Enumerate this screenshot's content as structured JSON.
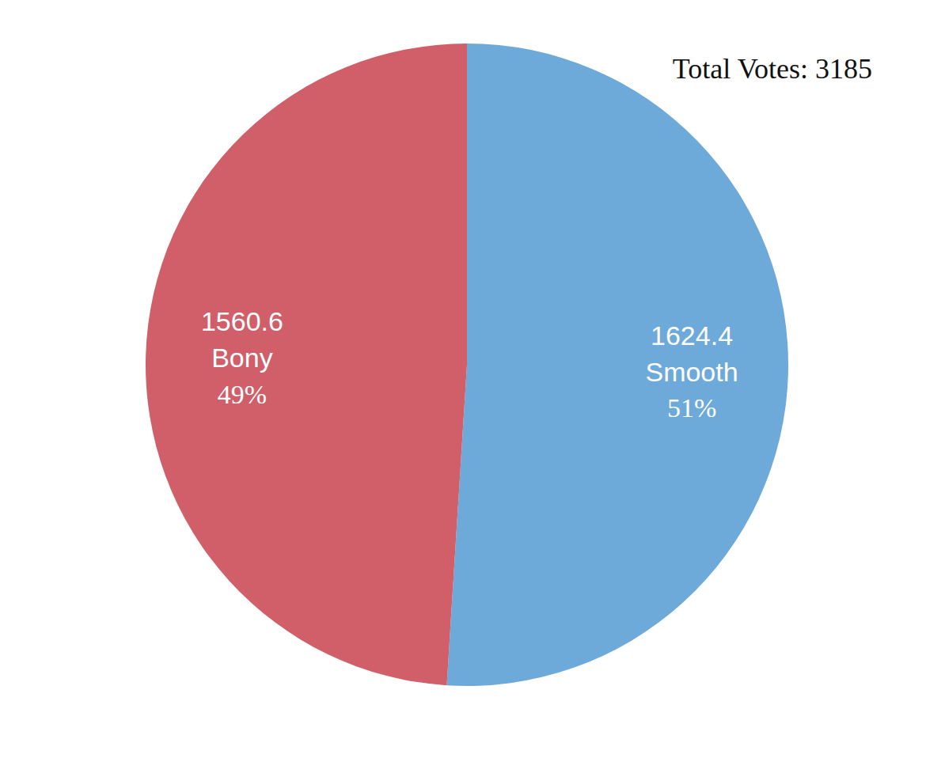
{
  "chart_data": {
    "type": "pie",
    "categories": [
      "Smooth",
      "Bony"
    ],
    "values": [
      1624.4,
      1560.6
    ],
    "colors": [
      "#6daad9",
      "#d05f6a"
    ],
    "percentages": [
      {
        "value": 51,
        "label": "51%"
      },
      {
        "value": 49,
        "label": "49%"
      }
    ],
    "data_labels": true,
    "annotations": [
      "Total Votes: 3185"
    ]
  }
}
